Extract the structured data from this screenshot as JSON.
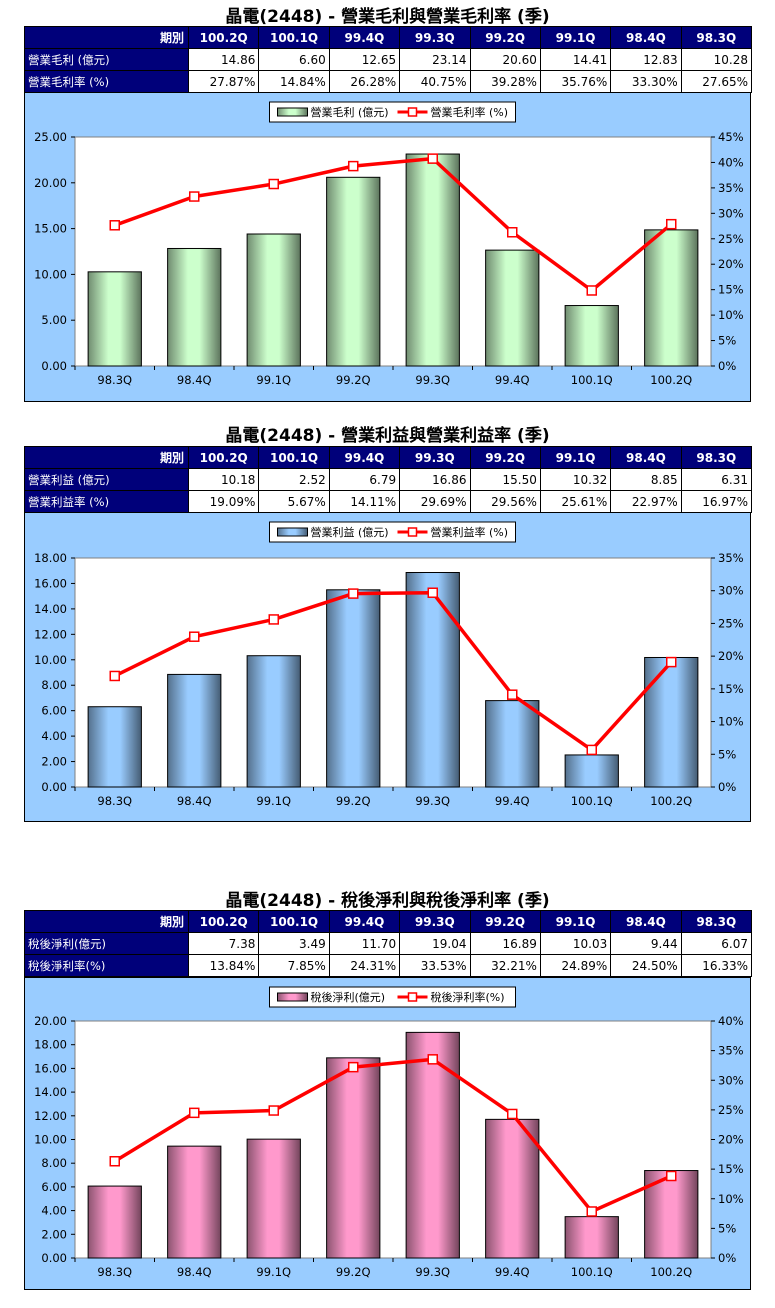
{
  "colors": {
    "header_bg": "#00007a",
    "chart_bg": "#99ccff",
    "line": "#ff0000",
    "bar1": "#ccffcc",
    "bar2": "#99ccff",
    "bar3": "#ff99cc"
  },
  "sections": [
    {
      "title": "晶電(2448) - 營業毛利與營業毛利率 (季)",
      "table": {
        "header_label": "期別",
        "periods": [
          "100.2Q",
          "100.1Q",
          "99.4Q",
          "99.3Q",
          "99.2Q",
          "99.1Q",
          "98.4Q",
          "98.3Q"
        ],
        "rows": [
          {
            "label": "營業毛利 (億元)",
            "values": [
              "14.86",
              "6.60",
              "12.65",
              "23.14",
              "20.60",
              "14.41",
              "12.83",
              "10.28"
            ]
          },
          {
            "label": "營業毛利率 (%)",
            "values": [
              "27.87%",
              "14.84%",
              "26.28%",
              "40.75%",
              "39.28%",
              "35.76%",
              "33.30%",
              "27.65%"
            ]
          }
        ]
      },
      "chart_data": {
        "type": "bar",
        "categories": [
          "98.3Q",
          "98.4Q",
          "99.1Q",
          "99.2Q",
          "99.3Q",
          "99.4Q",
          "100.1Q",
          "100.2Q"
        ],
        "series": [
          {
            "name": "營業毛利 (億元)",
            "type": "bar",
            "axis": "left",
            "values": [
              10.28,
              12.83,
              14.41,
              20.6,
              23.14,
              12.65,
              6.6,
              14.86
            ]
          },
          {
            "name": "營業毛利率 (%)",
            "type": "line",
            "axis": "right",
            "values": [
              27.65,
              33.3,
              35.76,
              39.28,
              40.75,
              26.28,
              14.84,
              27.87
            ]
          }
        ],
        "ylim_left": [
          0,
          25
        ],
        "ylim_right": [
          0,
          45
        ],
        "left_ticks": [
          "0.00",
          "5.00",
          "10.00",
          "15.00",
          "20.00",
          "25.00"
        ],
        "right_ticks": [
          "0%",
          "5%",
          "10%",
          "15%",
          "20%",
          "25%",
          "30%",
          "35%",
          "40%",
          "45%"
        ],
        "legend_position": "top-center",
        "bar_color": "#ccffcc",
        "line_color": "#ff0000"
      }
    },
    {
      "title": "晶電(2448) - 營業利益與營業利益率 (季)",
      "table": {
        "header_label": "期別",
        "periods": [
          "100.2Q",
          "100.1Q",
          "99.4Q",
          "99.3Q",
          "99.2Q",
          "99.1Q",
          "98.4Q",
          "98.3Q"
        ],
        "rows": [
          {
            "label": "營業利益 (億元)",
            "values": [
              "10.18",
              "2.52",
              "6.79",
              "16.86",
              "15.50",
              "10.32",
              "8.85",
              "6.31"
            ]
          },
          {
            "label": "營業利益率 (%)",
            "values": [
              "19.09%",
              "5.67%",
              "14.11%",
              "29.69%",
              "29.56%",
              "25.61%",
              "22.97%",
              "16.97%"
            ]
          }
        ]
      },
      "chart_data": {
        "type": "bar",
        "categories": [
          "98.3Q",
          "98.4Q",
          "99.1Q",
          "99.2Q",
          "99.3Q",
          "99.4Q",
          "100.1Q",
          "100.2Q"
        ],
        "series": [
          {
            "name": "營業利益 (億元)",
            "type": "bar",
            "axis": "left",
            "values": [
              6.31,
              8.85,
              10.32,
              15.5,
              16.86,
              6.79,
              2.52,
              10.18
            ]
          },
          {
            "name": "營業利益率 (%)",
            "type": "line",
            "axis": "right",
            "values": [
              16.97,
              22.97,
              25.61,
              29.56,
              29.69,
              14.11,
              5.67,
              19.09
            ]
          }
        ],
        "ylim_left": [
          0,
          18
        ],
        "ylim_right": [
          0,
          35
        ],
        "left_ticks": [
          "0.00",
          "2.00",
          "4.00",
          "6.00",
          "8.00",
          "10.00",
          "12.00",
          "14.00",
          "16.00",
          "18.00"
        ],
        "right_ticks": [
          "0%",
          "5%",
          "10%",
          "15%",
          "20%",
          "25%",
          "30%",
          "35%"
        ],
        "legend_position": "top-center",
        "bar_color": "#99ccff",
        "line_color": "#ff0000"
      }
    },
    {
      "title": "晶電(2448) - 稅後淨利與稅後淨利率 (季)",
      "table": {
        "header_label": "期別",
        "periods": [
          "100.2Q",
          "100.1Q",
          "99.4Q",
          "99.3Q",
          "99.2Q",
          "99.1Q",
          "98.4Q",
          "98.3Q"
        ],
        "rows": [
          {
            "label": "稅後淨利(億元)",
            "values": [
              "7.38",
              "3.49",
              "11.70",
              "19.04",
              "16.89",
              "10.03",
              "9.44",
              "6.07"
            ]
          },
          {
            "label": "稅後淨利率(%)",
            "values": [
              "13.84%",
              "7.85%",
              "24.31%",
              "33.53%",
              "32.21%",
              "24.89%",
              "24.50%",
              "16.33%"
            ]
          }
        ]
      },
      "chart_data": {
        "type": "bar",
        "categories": [
          "98.3Q",
          "98.4Q",
          "99.1Q",
          "99.2Q",
          "99.3Q",
          "99.4Q",
          "100.1Q",
          "100.2Q"
        ],
        "series": [
          {
            "name": "稅後淨利(億元)",
            "type": "bar",
            "axis": "left",
            "values": [
              6.07,
              9.44,
              10.03,
              16.89,
              19.04,
              11.7,
              3.49,
              7.38
            ]
          },
          {
            "name": "稅後淨利率(%)",
            "type": "line",
            "axis": "right",
            "values": [
              16.33,
              24.5,
              24.89,
              32.21,
              33.53,
              24.31,
              7.85,
              13.84
            ]
          }
        ],
        "ylim_left": [
          0,
          20
        ],
        "ylim_right": [
          0,
          40
        ],
        "left_ticks": [
          "0.00",
          "2.00",
          "4.00",
          "6.00",
          "8.00",
          "10.00",
          "12.00",
          "14.00",
          "16.00",
          "18.00",
          "20.00"
        ],
        "right_ticks": [
          "0%",
          "5%",
          "10%",
          "15%",
          "20%",
          "25%",
          "30%",
          "35%",
          "40%"
        ],
        "legend_position": "top-center",
        "bar_color": "#ff99cc",
        "line_color": "#ff0000"
      }
    }
  ]
}
